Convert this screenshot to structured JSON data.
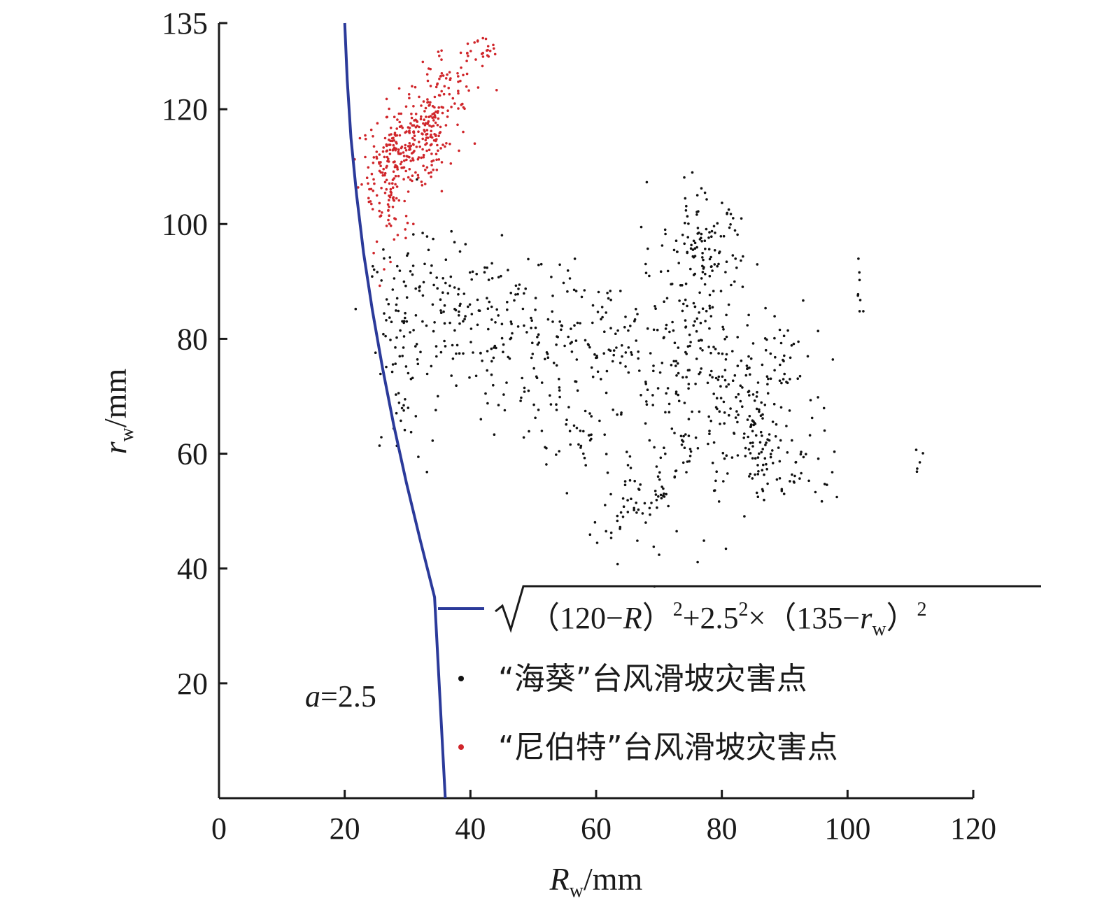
{
  "chart_data": {
    "type": "scatter",
    "xlabel_main": "R",
    "xlabel_sub": "w",
    "xlabel_unit": "/mm",
    "ylabel_main": "r",
    "ylabel_sub": "w",
    "ylabel_unit": "/mm",
    "xlim": [
      0,
      120
    ],
    "ylim": [
      0,
      135
    ],
    "x_ticks": [
      0,
      20,
      40,
      60,
      80,
      100,
      120
    ],
    "x_tick_labels": [
      "0",
      "20",
      "40",
      "60",
      "80",
      "100",
      "120"
    ],
    "y_ticks": [
      20,
      40,
      60,
      80,
      100,
      120,
      135
    ],
    "y_tick_labels": [
      "20",
      "40",
      "60",
      "80",
      "100",
      "120",
      "135"
    ],
    "curve": {
      "name_parts": {
        "open": "（120−",
        "var": "R",
        "mid": "）",
        "sup1": "2",
        "plus": "+2.5",
        "sup2": "2",
        "times": "×（135−",
        "var2": "r",
        "sub2": "w",
        "close": "）",
        "sup3": "2"
      },
      "a": 2.5,
      "level": 100,
      "x0": 120,
      "y0": 135,
      "color": "#2b3a9a",
      "points_x": [
        20.0,
        20.4,
        21.0,
        21.9,
        23.0,
        24.4,
        26.0,
        27.8,
        29.8,
        32.0,
        34.3,
        36.0
      ],
      "points_y": [
        135,
        125,
        115,
        105,
        95,
        85,
        75,
        65,
        55,
        45,
        35,
        0
      ]
    },
    "annotation": {
      "var": "a",
      "text": "=2.5"
    },
    "series": [
      {
        "name": "“海葵”台风滑坡灾害点",
        "color": "#111111",
        "clusters": [
          {
            "cx": 29,
            "cy": 78,
            "sx": 2.5,
            "sy": 10,
            "n": 80
          },
          {
            "cx": 38,
            "cy": 86,
            "sx": 5,
            "sy": 6,
            "n": 110
          },
          {
            "cx": 50,
            "cy": 80,
            "sx": 6,
            "sy": 7,
            "n": 130
          },
          {
            "cx": 55,
            "cy": 64,
            "sx": 4,
            "sy": 4,
            "n": 40
          },
          {
            "cx": 63,
            "cy": 80,
            "sx": 5,
            "sy": 5,
            "n": 60
          },
          {
            "cx": 66,
            "cy": 52,
            "sx": 5,
            "sy": 5,
            "n": 70
          },
          {
            "cx": 74,
            "cy": 73,
            "sx": 4,
            "sy": 12,
            "n": 150
          },
          {
            "cx": 77,
            "cy": 95,
            "sx": 3,
            "sy": 5,
            "n": 110
          },
          {
            "cx": 82,
            "cy": 70,
            "sx": 4,
            "sy": 8,
            "n": 80
          },
          {
            "cx": 86,
            "cy": 62,
            "sx": 2,
            "sy": 5,
            "n": 70
          },
          {
            "cx": 89,
            "cy": 76,
            "sx": 3,
            "sy": 6,
            "n": 50
          },
          {
            "cx": 92,
            "cy": 58,
            "sx": 1.5,
            "sy": 3,
            "n": 20
          },
          {
            "cx": 97,
            "cy": 60,
            "sx": 2,
            "sy": 6,
            "n": 12
          },
          {
            "cx": 102,
            "cy": 88,
            "sx": 0.5,
            "sy": 2.5,
            "n": 8
          },
          {
            "cx": 111,
            "cy": 58,
            "sx": 0.4,
            "sy": 1.2,
            "n": 5
          }
        ]
      },
      {
        "name": "“尼伯特”台风滑坡灾害点",
        "color": "#d0262b",
        "clusters": [
          {
            "cx": 27,
            "cy": 106,
            "sx": 1.8,
            "sy": 6,
            "n": 110
          },
          {
            "cx": 30,
            "cy": 113,
            "sx": 3,
            "sy": 3,
            "n": 160
          },
          {
            "cx": 33,
            "cy": 117,
            "sx": 2,
            "sy": 4,
            "n": 100
          },
          {
            "cx": 37,
            "cy": 123,
            "sx": 2,
            "sy": 4,
            "n": 50
          },
          {
            "cx": 41,
            "cy": 130,
            "sx": 1.5,
            "sy": 1.5,
            "n": 25
          }
        ]
      }
    ],
    "legend_position": "bottom-right"
  }
}
